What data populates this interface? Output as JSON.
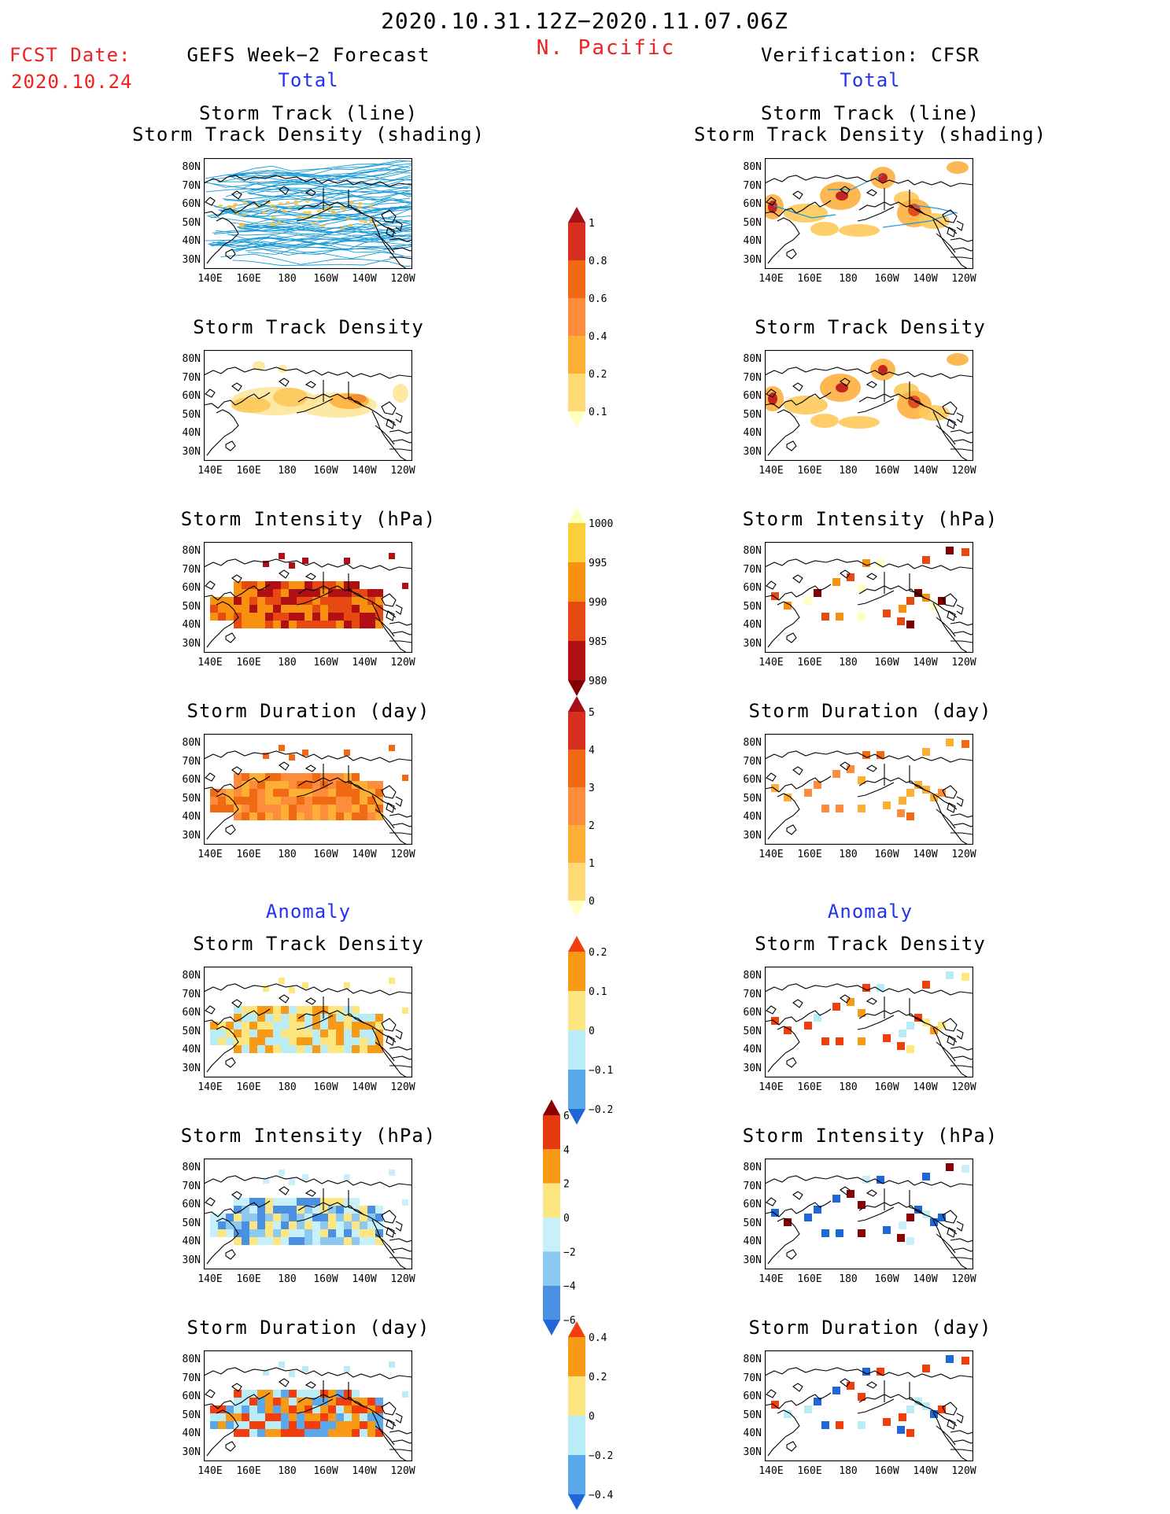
{
  "header": {
    "period": "2020.10.31.12Z−2020.11.07.06Z",
    "region": "N. Pacific",
    "fcst_label": "FCST Date:",
    "fcst_date": "2020.10.24",
    "left_title": "GEFS Week−2 Forecast",
    "right_title": "Verification: CFSR",
    "total_label": "Total",
    "anomaly_label": "Anomaly"
  },
  "axes": {
    "x_ticks": [
      "140E",
      "160E",
      "180",
      "160W",
      "140W",
      "120W"
    ],
    "y_ticks": [
      "80N",
      "70N",
      "60N",
      "50N",
      "40N",
      "30N"
    ]
  },
  "panel_titles": {
    "track_line": "Storm Track (line)",
    "track_shading": "Storm Track Density (shading)",
    "density": "Storm Track Density",
    "intensity": "Storm Intensity (hPa)",
    "duration": "Storm Duration (day)"
  },
  "colorbars": {
    "density_total": {
      "labels": [
        "1",
        "0.8",
        "0.6",
        "0.4",
        "0.2",
        "0.1"
      ],
      "colors": [
        "#a50f15",
        "#d7301f",
        "#f16913",
        "#fd8d3c",
        "#fdae35",
        "#fed976",
        "#ffffbf"
      ]
    },
    "intensity_total": {
      "labels": [
        "1000",
        "995",
        "990",
        "985",
        "980"
      ],
      "colors": [
        "#ffffbf",
        "#fdcf3b",
        "#f89010",
        "#e64a12",
        "#b01014",
        "#800000"
      ]
    },
    "duration_total": {
      "labels": [
        "5",
        "4",
        "3",
        "2",
        "1",
        "0"
      ],
      "colors": [
        "#a50f15",
        "#d7301f",
        "#f16913",
        "#fd8d3c",
        "#fdae35",
        "#fed976",
        "#ffffbf"
      ]
    },
    "density_anomaly": {
      "labels": [
        "0.2",
        "0.1",
        "0",
        "−0.1",
        "−0.2"
      ],
      "colors": [
        "#f43d0c",
        "#f89a16",
        "#fde580",
        "#b8ecf6",
        "#5aa8ec",
        "#1f66d6"
      ]
    },
    "intensity_anomaly": {
      "labels": [
        "6",
        "4",
        "2",
        "0",
        "−2",
        "−4",
        "−6"
      ],
      "colors": [
        "#8b0000",
        "#e33b0e",
        "#f89a16",
        "#fde580",
        "#c8f0fa",
        "#8cc8f0",
        "#4a90e2",
        "#1f66d6"
      ]
    },
    "duration_anomaly": {
      "labels": [
        "0.4",
        "0.2",
        "0",
        "−0.2",
        "−0.4"
      ],
      "colors": [
        "#f43d0c",
        "#f89a16",
        "#fde580",
        "#b8ecf6",
        "#5aa8ec",
        "#1f66d6"
      ]
    }
  }
}
